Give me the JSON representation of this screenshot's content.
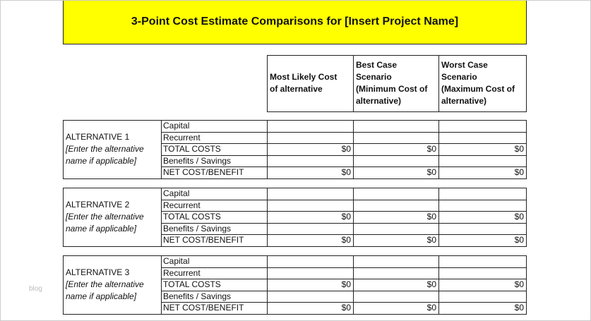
{
  "title": "3-Point Cost Estimate Comparisons for [Insert Project Name]",
  "columns": [
    [
      "Most Likely Cost",
      "of alternative"
    ],
    [
      "Best Case",
      "Scenario",
      "(Minimum Cost of",
      "alternative)"
    ],
    [
      "Worst Case",
      "Scenario",
      "(Maximum Cost of",
      "alternative)"
    ]
  ],
  "alternatives": [
    {
      "name": "ALTERNATIVE 1",
      "note": [
        "[Enter the alternative",
        "name if applicable]"
      ],
      "rows": [
        {
          "label": "Capital"
        },
        {
          "label": "Recurrent"
        },
        {
          "label": "TOTAL COSTS",
          "values": [
            "$0",
            "$0",
            "$0"
          ]
        },
        {
          "label": "Benefits / Savings"
        },
        {
          "label": "NET COST/BENEFIT",
          "values": [
            "$0",
            "$0",
            "$0"
          ]
        }
      ]
    },
    {
      "name": "ALTERNATIVE 2",
      "note": [
        "[Enter the alternative",
        "name if applicable]"
      ],
      "rows": [
        {
          "label": "Capital"
        },
        {
          "label": "Recurrent"
        },
        {
          "label": "TOTAL COSTS",
          "values": [
            "$0",
            "$0",
            "$0"
          ]
        },
        {
          "label": "Benefits / Savings"
        },
        {
          "label": "NET COST/BENEFIT",
          "values": [
            "$0",
            "$0",
            "$0"
          ]
        }
      ]
    },
    {
      "name": "ALTERNATIVE 3",
      "note": [
        "[Enter the alternative",
        "name if applicable]"
      ],
      "rows": [
        {
          "label": "Capital"
        },
        {
          "label": "Recurrent"
        },
        {
          "label": "TOTAL COSTS",
          "values": [
            "$0",
            "$0",
            "$0"
          ]
        },
        {
          "label": "Benefits / Savings"
        },
        {
          "label": "NET COST/BENEFIT",
          "values": [
            "$0",
            "$0",
            "$0"
          ]
        }
      ]
    }
  ],
  "watermark": "blog"
}
